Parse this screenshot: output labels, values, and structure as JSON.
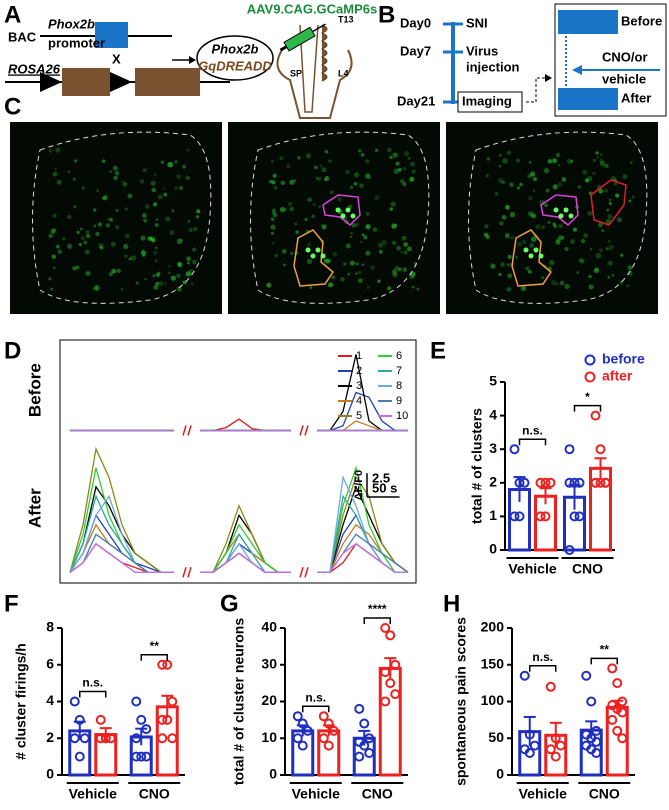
{
  "panel_letters": [
    "A",
    "B",
    "C",
    "D",
    "E",
    "F",
    "G",
    "H"
  ],
  "panel_a": {
    "bac": "BAC",
    "gene": "Phox2b",
    "promoter": "promoter",
    "cross": "X",
    "rosa": "ROSA26",
    "dreadd_gene": "Phox2b",
    "dreadd": "GqDREADD",
    "virus": "AAV9.CAG.GCaMP6s",
    "t13": "T13",
    "sp": "SP",
    "l4": "L4"
  },
  "panel_b": {
    "day0": "Day0",
    "sni": "SNI",
    "day7": "Day7",
    "virus": "Virus",
    "injection": "injection",
    "day21": "Day21",
    "imaging": "Imaging",
    "before": "Before",
    "cno": "CNO/or",
    "vehicle": "vehicle",
    "after": "After"
  },
  "chart_data": [
    {
      "type": "line",
      "ylabel": "ΔF/F0",
      "scale_bar": {
        "y": 2.5,
        "x": {
          "value": 50,
          "label": "50 s"
        }
      },
      "x": [
        0,
        20,
        40,
        60,
        80,
        100,
        120,
        140,
        160,
        180,
        200,
        220,
        240,
        260,
        280,
        300,
        320,
        340,
        360,
        380,
        400,
        420,
        440,
        460,
        480,
        500,
        520
      ],
      "xlim": [
        0,
        520
      ],
      "rows": [
        {
          "label": "Before",
          "ylim": [
            -0.5,
            9
          ]
        },
        {
          "label": "After",
          "ylim": [
            -0.5,
            14
          ]
        }
      ],
      "series": [
        {
          "name": "1",
          "color": "#e31a1c",
          "values": [
            [
              0,
              0,
              0,
              0,
              0,
              0,
              0,
              0,
              0,
              null,
              0,
              0,
              0.3,
              1.2,
              0.2,
              0,
              0,
              0,
              null,
              0,
              0,
              0,
              0,
              0,
              0,
              0,
              0
            ],
            [
              0,
              1,
              3,
              2,
              1,
              0.5,
              0,
              0,
              0,
              null,
              0,
              0,
              1,
              2,
              1,
              0,
              0,
              0,
              null,
              0,
              0,
              1,
              3,
              2,
              1,
              0,
              0
            ]
          ]
        },
        {
          "name": "2",
          "color": "#1f3fbf",
          "values": [
            [
              0,
              0,
              0,
              0,
              0,
              0,
              0,
              0,
              0,
              null,
              0,
              0,
              0,
              0,
              0,
              0,
              0,
              0,
              null,
              0,
              0,
              0.5,
              4,
              3.5,
              1,
              0,
              0
            ],
            [
              0,
              2,
              6,
              4,
              2,
              1,
              0.5,
              0,
              0,
              null,
              0,
              0,
              1,
              3,
              2,
              1,
              0,
              0,
              null,
              0,
              0,
              4,
              6,
              3,
              1,
              0,
              0
            ]
          ]
        },
        {
          "name": "3",
          "color": "#000000",
          "values": [
            [
              0,
              0,
              0,
              0,
              0,
              0,
              0,
              0,
              0,
              null,
              0,
              0,
              0,
              0,
              0,
              0,
              0,
              0,
              null,
              0,
              0,
              2,
              8,
              1,
              0,
              0,
              0
            ],
            [
              0,
              3,
              9,
              7,
              4,
              2,
              1,
              0,
              0,
              null,
              0,
              0,
              2,
              6,
              4,
              1,
              0,
              0,
              null,
              0,
              0,
              5,
              9,
              6,
              3,
              1,
              0
            ]
          ]
        },
        {
          "name": "4",
          "color": "#c87a1e",
          "values": [
            [
              0,
              0,
              0,
              0,
              0,
              0,
              0,
              0,
              0,
              null,
              0,
              0,
              0,
              0,
              0,
              0,
              0,
              0,
              null,
              0,
              0,
              0,
              1,
              0.5,
              0,
              0,
              0
            ],
            [
              0,
              2,
              5,
              3,
              2,
              1,
              0,
              0,
              0,
              null,
              0,
              0,
              2,
              4,
              2,
              1,
              0,
              0,
              null,
              0,
              0,
              3,
              5,
              4,
              2,
              1,
              0
            ]
          ]
        },
        {
          "name": "5",
          "color": "#8a8a1a",
          "values": [
            [
              0,
              0,
              0,
              0,
              0,
              0,
              0,
              0,
              0,
              null,
              0,
              0,
              0,
              0,
              0,
              0,
              0,
              0,
              null,
              0,
              0,
              0,
              0,
              0,
              0,
              0,
              0
            ],
            [
              0,
              5,
              13,
              10,
              5,
              2,
              1,
              0,
              0,
              null,
              0,
              0,
              3,
              7,
              4,
              1,
              0,
              0,
              null,
              0,
              0,
              6,
              10,
              8,
              3,
              1,
              0
            ]
          ]
        },
        {
          "name": "6",
          "color": "#33cc33",
          "values": [
            [
              0,
              0,
              0,
              0,
              0,
              0,
              0,
              0,
              0,
              null,
              0,
              0,
              0,
              0,
              0,
              0,
              0,
              0,
              null,
              0,
              0,
              0,
              0,
              0,
              0,
              0,
              0
            ],
            [
              0,
              4,
              11,
              6,
              3,
              1,
              0,
              0,
              0,
              null,
              0,
              0,
              2,
              5,
              3,
              1,
              0,
              0,
              null,
              0,
              0,
              7,
              11,
              5,
              2,
              0,
              0
            ]
          ]
        },
        {
          "name": "7",
          "color": "#2aa9a0",
          "values": [
            [
              0,
              0,
              0,
              0,
              0,
              0,
              0,
              0,
              0,
              null,
              0,
              0,
              0,
              0,
              0,
              0,
              0,
              0,
              null,
              0,
              0,
              0,
              0,
              0,
              0,
              0,
              0
            ],
            [
              0,
              3,
              8,
              5,
              3,
              1,
              0,
              0,
              0,
              null,
              0,
              0,
              1,
              4,
              2,
              0,
              0,
              0,
              null,
              0,
              0,
              8,
              6,
              3,
              1,
              0,
              0
            ]
          ]
        },
        {
          "name": "8",
          "color": "#6fa8dc",
          "values": [
            [
              0,
              0,
              0,
              0,
              0,
              0,
              0,
              0,
              0,
              null,
              0,
              0,
              0,
              0,
              0,
              0,
              0,
              0,
              null,
              0,
              0,
              0,
              0,
              0,
              0,
              0,
              0
            ],
            [
              0,
              2,
              6,
              8,
              4,
              1,
              0,
              0,
              0,
              null,
              0,
              0,
              1,
              3,
              1,
              0,
              0,
              0,
              null,
              0,
              0,
              10,
              7,
              3,
              1,
              0,
              0
            ]
          ]
        },
        {
          "name": "9",
          "color": "#4a7fb0",
          "values": [
            [
              0,
              0,
              0,
              0,
              0,
              0,
              0,
              0,
              0,
              null,
              0,
              0,
              0,
              0,
              0,
              0,
              0,
              0,
              null,
              0,
              0,
              0,
              0,
              0,
              0,
              0,
              0
            ],
            [
              0,
              1,
              4,
              3,
              2,
              1,
              0,
              0,
              0,
              null,
              0,
              0,
              1,
              2,
              1,
              0,
              0,
              0,
              null,
              0,
              0,
              2,
              4,
              3,
              2,
              1,
              0
            ]
          ]
        },
        {
          "name": "10",
          "color": "#c070e0",
          "values": [
            [
              0,
              0,
              0,
              0,
              0,
              0,
              0,
              0,
              0,
              null,
              0,
              0,
              0,
              0,
              0,
              0,
              0,
              0,
              null,
              0,
              0,
              0,
              0,
              0,
              0,
              0,
              0
            ],
            [
              0,
              1,
              3,
              2,
              1,
              0,
              0,
              0,
              0,
              null,
              0,
              0,
              1,
              2,
              1,
              0,
              0,
              0,
              null,
              0,
              0,
              2,
              3,
              2,
              1,
              0,
              0
            ]
          ]
        }
      ]
    },
    {
      "type": "bar",
      "ylabel": "total # of clusters",
      "categories": [
        "Vehicle",
        "CNO"
      ],
      "ylim": [
        0,
        5
      ],
      "yticks": [
        0,
        1,
        2,
        3,
        4,
        5
      ],
      "significance": [
        "n.s.",
        "*"
      ],
      "series": [
        {
          "name": "before",
          "color": "#1f2fbf",
          "values": [
            1.8,
            1.57
          ],
          "errors": [
            0.37,
            0.37
          ],
          "points": [
            [
              3,
              2,
              2,
              1,
              1
            ],
            [
              3,
              2,
              2,
              2,
              1,
              1,
              0
            ]
          ]
        },
        {
          "name": "after",
          "color": "#ee2020",
          "values": [
            1.6,
            2.43
          ],
          "errors": [
            0.24,
            0.3
          ],
          "points": [
            [
              2,
              2,
              2,
              1,
              1
            ],
            [
              4,
              3,
              2,
              2,
              2,
              2,
              2
            ]
          ]
        }
      ]
    },
    {
      "type": "bar",
      "ylabel": "# cluster firings/h",
      "categories": [
        "Vehicle",
        "CNO"
      ],
      "ylim": [
        0,
        8
      ],
      "yticks": [
        0,
        2,
        4,
        6,
        8
      ],
      "significance": [
        "n.s.",
        "**"
      ],
      "series": [
        {
          "color": "#1f2fbf",
          "values": [
            2.4,
            2.07
          ],
          "errors": [
            0.5,
            0.45
          ],
          "points": [
            [
              4,
              3,
              2,
              2,
              1
            ],
            [
              4,
              3,
              2.5,
              2,
              1,
              1,
              1
            ]
          ]
        },
        {
          "color": "#ee2020",
          "values": [
            2.2,
            3.71
          ],
          "errors": [
            0.35,
            0.6
          ],
          "points": [
            [
              3,
              2,
              2,
              2,
              2
            ],
            [
              6,
              6,
              4,
              3,
              3,
              2,
              2
            ]
          ]
        }
      ]
    },
    {
      "type": "bar",
      "ylabel": "total # of cluster neurons",
      "categories": [
        "Vehicle",
        "CNO"
      ],
      "ylim": [
        0,
        40
      ],
      "yticks": [
        0,
        10,
        20,
        30,
        40
      ],
      "significance": [
        "n.s.",
        "****"
      ],
      "series": [
        {
          "color": "#1f2fbf",
          "values": [
            12,
            10
          ],
          "errors": [
            1.5,
            2
          ],
          "points": [
            [
              16,
              14,
              12,
              10,
              8
            ],
            [
              18,
              14,
              10,
              9,
              8,
              6,
              5
            ]
          ]
        },
        {
          "color": "#ee2020",
          "values": [
            12,
            29
          ],
          "errors": [
            1.5,
            2.8
          ],
          "points": [
            [
              16,
              14,
              12,
              10,
              8
            ],
            [
              40,
              38,
              30,
              28,
              25,
              22,
              20
            ]
          ]
        }
      ]
    },
    {
      "type": "bar",
      "ylabel": "spontaneous pain scores",
      "categories": [
        "Vehicle",
        "CNO"
      ],
      "ylim": [
        0,
        200
      ],
      "yticks": [
        0,
        50,
        100,
        150,
        200
      ],
      "significance": [
        "n.s.",
        "**"
      ],
      "series": [
        {
          "color": "#1f2fbf",
          "values": [
            59,
            61
          ],
          "errors": [
            20,
            12
          ],
          "points": [
            [
              135,
              55,
              40,
              35,
              30
            ],
            [
              135,
              100,
              60,
              55,
              50,
              45,
              40,
              35,
              30
            ]
          ]
        },
        {
          "color": "#ee2020",
          "values": [
            54,
            92
          ],
          "errors": [
            17,
            9
          ],
          "points": [
            [
              120,
              50,
              40,
              35,
              25
            ],
            [
              145,
              125,
              100,
              95,
              90,
              85,
              75,
              60,
              50
            ]
          ]
        }
      ]
    }
  ]
}
